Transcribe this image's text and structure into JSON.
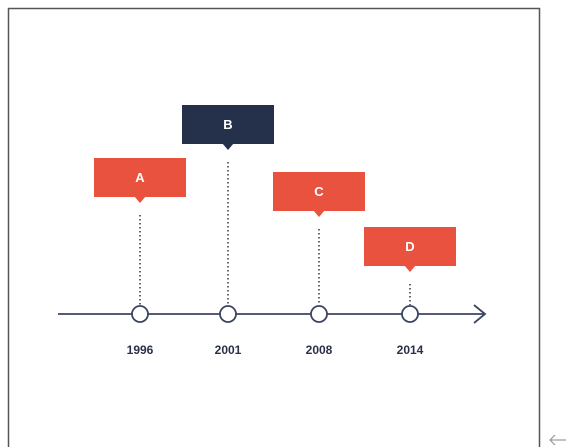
{
  "events": [
    {
      "label": "A",
      "year": "1996",
      "highlight": false
    },
    {
      "label": "B",
      "year": "2001",
      "highlight": true
    },
    {
      "label": "C",
      "year": "2008",
      "highlight": false
    },
    {
      "label": "D",
      "year": "2014",
      "highlight": false
    }
  ]
}
